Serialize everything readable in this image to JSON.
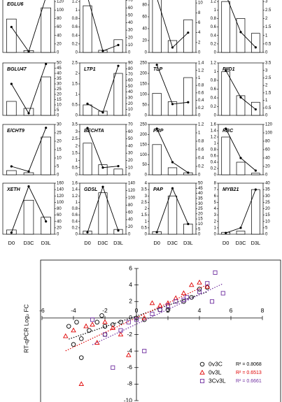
{
  "chart_data": [
    {
      "type": "bar",
      "title": "EGLU6",
      "categories": [
        null,
        null,
        null
      ],
      "ylim": [
        0,
        1.6
      ],
      "y2lim": [
        0,
        140
      ],
      "y2ticks": [
        0,
        20,
        40,
        60,
        80,
        100,
        120,
        140
      ],
      "series": [
        {
          "color": "#ffffff",
          "values": [
            0.9,
            0.05,
            1.2
          ]
        },
        {
          "color": "#000000",
          "axis": "y2",
          "values": [
            60,
            2,
            130
          ]
        }
      ]
    },
    {
      "type": "bar",
      "categories": [
        null,
        null,
        null
      ],
      "ylim": [
        0,
        1.4
      ],
      "yticks": [
        0,
        0.2,
        0.4,
        0.6,
        0.8,
        1,
        1.2,
        1.4
      ],
      "y2lim": [
        0,
        80
      ],
      "y2ticks": [
        0,
        10,
        20,
        30,
        40,
        50,
        60,
        70,
        80
      ],
      "series": [
        {
          "color": "#ffffff",
          "values": [
            1.1,
            0.05,
            0.3
          ]
        },
        {
          "color": "#000000",
          "axis": "y2",
          "values": [
            75,
            2,
            10
          ]
        }
      ]
    },
    {
      "type": "bar",
      "categories": [
        null,
        null,
        null
      ],
      "ylim": [
        0,
        100
      ],
      "yticks": [
        0,
        20,
        40,
        60,
        80,
        100
      ],
      "y2lim": [
        0,
        12
      ],
      "y2ticks": [
        0,
        2,
        4,
        6,
        8,
        10,
        12
      ],
      "series": [
        {
          "color": "#ffffff",
          "values": [
            95,
            20,
            55
          ]
        },
        {
          "color": "#000000",
          "axis": "y2",
          "values": [
            11,
            1,
            4
          ]
        }
      ]
    },
    {
      "type": "bar",
      "categories": [
        null,
        null,
        null
      ],
      "ylim": [
        0,
        1.4
      ],
      "yticks": [
        0,
        0.2,
        0.4,
        0.6,
        0.8,
        1,
        1.2,
        1.4
      ],
      "y2lim": [
        0,
        3.5
      ],
      "y2ticks": [
        0,
        0.5,
        1,
        1.5,
        2,
        2.5,
        3,
        3.5
      ],
      "series": [
        {
          "color": "#ffffff",
          "values": [
            1.2,
            0.8,
            0.45
          ]
        },
        {
          "color": "#000000",
          "axis": "y2",
          "values": [
            3.4,
            1.2,
            0.3
          ]
        }
      ]
    },
    {
      "type": "bar",
      "title": "BGLU47",
      "categories": [
        null,
        null,
        null
      ],
      "ylim": [
        0,
        3
      ],
      "y2lim": [
        0,
        50
      ],
      "y2ticks": [
        0,
        5,
        10,
        15,
        20,
        25,
        30,
        35,
        40,
        45,
        50
      ],
      "series": [
        {
          "color": "#ffffff",
          "values": [
            0.8,
            0.4,
            2.2
          ]
        },
        {
          "color": "#000000",
          "axis": "y2",
          "values": [
            30,
            2,
            49
          ]
        }
      ]
    },
    {
      "type": "bar",
      "title": "LTP1",
      "categories": [
        null,
        null,
        null
      ],
      "ylim": [
        0,
        2.5
      ],
      "yticks": [
        0,
        0.5,
        1,
        1.5,
        2,
        2.5
      ],
      "y2lim": [
        0,
        90
      ],
      "y2ticks": [
        0,
        10,
        20,
        30,
        40,
        50,
        60,
        70,
        80,
        90
      ],
      "series": [
        {
          "color": "#ffffff",
          "values": [
            0.5,
            0.2,
            2.0
          ]
        },
        {
          "color": "#000000",
          "axis": "y2",
          "values": [
            20,
            5,
            85
          ]
        }
      ]
    },
    {
      "type": "bar",
      "title": "TLP",
      "categories": [
        null,
        null,
        null
      ],
      "ylim": [
        0,
        250
      ],
      "yticks": [
        0,
        50,
        100,
        150,
        200,
        250
      ],
      "y2lim": [
        0,
        1.4
      ],
      "y2ticks": [
        0,
        0.2,
        0.4,
        0.6,
        0.8,
        1,
        1.2,
        1.4
      ],
      "series": [
        {
          "color": "#ffffff",
          "values": [
            105,
            65,
            180
          ]
        },
        {
          "color": "#000000",
          "axis": "y2",
          "values": [
            1.35,
            0.3,
            0.35
          ]
        }
      ]
    },
    {
      "type": "bar",
      "title": "PIID1",
      "categories": [
        null,
        null,
        null
      ],
      "ylim": [
        0,
        1.2
      ],
      "yticks": [
        0,
        0.2,
        0.4,
        0.6,
        0.8,
        1,
        1.2
      ],
      "y2lim": [
        0,
        3.5
      ],
      "y2ticks": [
        0,
        0.5,
        1,
        1.5,
        2,
        2.5,
        3,
        3.5
      ],
      "series": [
        {
          "color": "#ffffff",
          "values": [
            1.0,
            0.45,
            0.3
          ]
        },
        {
          "color": "#000000",
          "axis": "y2",
          "values": [
            3.0,
            1.2,
            0.4
          ]
        }
      ]
    },
    {
      "type": "bar",
      "title": "E/CHT9",
      "categories": [
        null,
        null,
        null
      ],
      "ylim": [
        0,
        1.2
      ],
      "y2lim": [
        0,
        30
      ],
      "y2ticks": [
        0,
        5,
        10,
        15,
        20,
        25,
        30
      ],
      "series": [
        {
          "color": "#ffffff",
          "values": [
            0.1,
            0.05,
            0.9
          ]
        },
        {
          "color": "#000000",
          "axis": "y2",
          "values": [
            5,
            2,
            28
          ]
        }
      ]
    },
    {
      "type": "bar",
      "title": "BECHTA",
      "categories": [
        null,
        null,
        null
      ],
      "ylim": [
        0,
        3.5
      ],
      "yticks": [
        0,
        0.5,
        1,
        1.5,
        2,
        2.5,
        3,
        3.5
      ],
      "y2lim": [
        0,
        70
      ],
      "y2ticks": [
        0,
        10,
        20,
        30,
        40,
        50,
        60,
        70
      ],
      "series": [
        {
          "color": "#ffffff",
          "values": [
            2.2,
            0.7,
            0.4
          ]
        },
        {
          "color": "#000000",
          "axis": "y2",
          "values": [
            65,
            10,
            12
          ]
        }
      ]
    },
    {
      "type": "bar",
      "title": "PRP",
      "categories": [
        null,
        null,
        null
      ],
      "ylim": [
        0,
        250
      ],
      "yticks": [
        0,
        50,
        100,
        150,
        200,
        250
      ],
      "y2lim": [
        0,
        1.2
      ],
      "y2ticks": [
        0,
        0.2,
        0.4,
        0.6,
        0.8,
        1,
        1.2
      ],
      "series": [
        {
          "color": "#ffffff",
          "values": [
            150,
            35,
            10
          ]
        },
        {
          "color": "#000000",
          "axis": "y2",
          "values": [
            1.1,
            0.3,
            0.05
          ]
        }
      ]
    },
    {
      "type": "bar",
      "title": "RBC",
      "categories": [
        null,
        null,
        null
      ],
      "ylim": [
        0,
        1.6
      ],
      "yticks": [
        0,
        0.2,
        0.4,
        0.6,
        0.8,
        1,
        1.2,
        1.4,
        1.6
      ],
      "y2lim": [
        0,
        120
      ],
      "y2ticks": [
        0,
        20,
        40,
        60,
        80,
        100,
        120
      ],
      "series": [
        {
          "color": "#ffffff",
          "values": [
            1.2,
            0.4,
            0.05
          ]
        },
        {
          "color": "#000000",
          "axis": "y2",
          "values": [
            110,
            40,
            10
          ]
        }
      ]
    },
    {
      "type": "bar",
      "title": "XETH",
      "categories": [
        "D0",
        "D3C",
        "D3L"
      ],
      "ylim": [
        0,
        1.2
      ],
      "y2lim": [
        0,
        160
      ],
      "y2ticks": [
        0,
        20,
        40,
        60,
        80,
        100,
        120,
        140,
        160
      ],
      "series": [
        {
          "color": "#ffffff",
          "values": [
            0.1,
            0.8,
            0.4
          ]
        },
        {
          "color": "#000000",
          "axis": "y2",
          "values": [
            5,
            150,
            40
          ]
        }
      ]
    },
    {
      "type": "bar",
      "title": "GDSL",
      "categories": [
        "D0",
        "D3C",
        "D3L"
      ],
      "ylim": [
        0,
        1.6
      ],
      "yticks": [
        0,
        0.2,
        0.4,
        0.6,
        0.8,
        1,
        1.2,
        1.4,
        1.6
      ],
      "y2lim": [
        0,
        140
      ],
      "y2ticks": [
        0,
        20,
        40,
        60,
        80,
        100,
        120,
        140
      ],
      "series": [
        {
          "color": "#ffffff",
          "values": [
            0.1,
            1.3,
            0.15
          ]
        },
        {
          "color": "#000000",
          "axis": "y2",
          "values": [
            5,
            130,
            10
          ]
        }
      ]
    },
    {
      "type": "bar",
      "title": "PAP",
      "categories": [
        "D0",
        "D3C",
        "D3L"
      ],
      "ylim": [
        0,
        4
      ],
      "yticks": [
        0,
        0.5,
        1,
        1.5,
        2,
        2.5,
        3,
        3.5,
        4
      ],
      "y2lim": [
        0,
        50
      ],
      "y2ticks": [
        0,
        5,
        10,
        15,
        20,
        25,
        30,
        35,
        40,
        45,
        50
      ],
      "series": [
        {
          "color": "#ffffff",
          "values": [
            0.2,
            3.0,
            0.8
          ]
        },
        {
          "color": "#000000",
          "axis": "y2",
          "values": [
            2,
            45,
            10
          ]
        }
      ]
    },
    {
      "type": "bar",
      "title": "MYB21",
      "categories": [
        "D0",
        "D3C",
        "D3L"
      ],
      "ylim": [
        0,
        8
      ],
      "yticks": [
        0,
        1,
        2,
        3,
        4,
        5,
        6,
        7,
        8
      ],
      "y2lim": [
        0,
        40
      ],
      "y2ticks": [
        0,
        5,
        10,
        15,
        20,
        25,
        30,
        35,
        40
      ],
      "series": [
        {
          "color": "#ffffff",
          "values": [
            0.3,
            0.5,
            7
          ]
        },
        {
          "color": "#000000",
          "axis": "y2",
          "values": [
            1,
            5,
            35
          ]
        }
      ]
    },
    {
      "type": "scatter",
      "y_label": "RT-qPCR Log₂ FC",
      "xlim": [
        -6,
        8
      ],
      "xticks": [
        -6,
        -4,
        -2,
        0,
        2,
        4,
        6,
        8
      ],
      "ylim": [
        -10,
        6
      ],
      "yticks": [
        -10,
        -8,
        -6,
        -4,
        -2,
        0,
        2,
        4,
        6
      ],
      "series": [
        {
          "name": "0v3C",
          "color": "#000000",
          "marker": "circle",
          "annotation": "R² = 0.8068",
          "x": [
            -4.3,
            -3.8,
            -3.5,
            -3,
            -2.5,
            -2,
            -1.5,
            -4,
            -3.5,
            -2,
            -1,
            0,
            0.5,
            2,
            3,
            3.5,
            4,
            4.5,
            1.5,
            -2.2
          ],
          "values": [
            -1,
            -0.5,
            -2.5,
            -1.5,
            -0.5,
            -1,
            -0.8,
            -3.2,
            -4.8,
            -2,
            -0.5,
            0,
            -0.2,
            1,
            2,
            2.5,
            3.5,
            3.7,
            1,
            0.3
          ]
        },
        {
          "name": "0v3L",
          "color": "#e00000",
          "marker": "triangle",
          "annotation": "R² = 0.6513",
          "x": [
            -4.5,
            -4,
            -3.2,
            -2.8,
            -2,
            -1.5,
            -1,
            -3.5,
            0.5,
            1.5,
            2,
            2.5,
            3,
            3.5,
            4,
            4.5,
            -2.5,
            -0.5,
            1
          ],
          "values": [
            -2.2,
            -1.5,
            -1,
            -0.8,
            -0.5,
            -1.2,
            -2,
            -8,
            0,
            1.5,
            1.8,
            2.4,
            3,
            4,
            4.3,
            3.8,
            -3,
            -4.5,
            1.8
          ]
        },
        {
          "name": "3Cv3L",
          "color": "#7030a0",
          "marker": "square",
          "annotation": "R² = 0.6661",
          "x": [
            -1.5,
            -2,
            -1,
            -0.5,
            0,
            0.5,
            1.5,
            2,
            2.5,
            3,
            4.5,
            4,
            5,
            5.5,
            4.8,
            3.2,
            -2.8,
            1
          ],
          "values": [
            -6,
            -2,
            -1.5,
            -0.5,
            -0.2,
            -4,
            1,
            1.5,
            2,
            2.2,
            4.2,
            3.2,
            5.5,
            3,
            2,
            2.5,
            -0.2,
            0.5
          ]
        }
      ]
    }
  ]
}
